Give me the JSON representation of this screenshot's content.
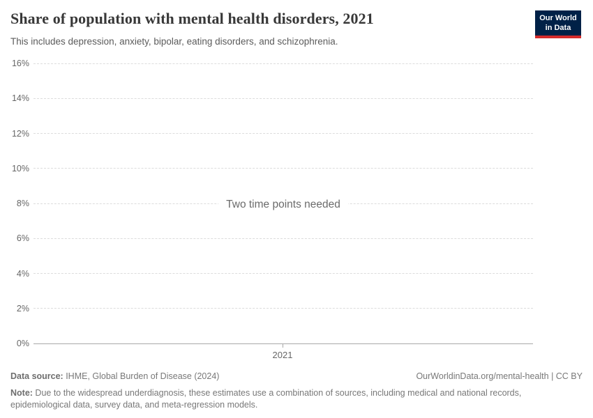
{
  "header": {
    "title": "Share of population with mental health disorders, 2021",
    "subtitle": "This includes depression, anxiety, bipolar, eating disorders, and schizophrenia.",
    "logo": {
      "line1": "Our World",
      "line2": "in Data",
      "bg_color": "#002147",
      "bar_color": "#d42b2b"
    }
  },
  "chart_data": {
    "type": "line",
    "title": "Share of population with mental health disorders, 2021",
    "empty_message": "Two time points needed",
    "series": [],
    "x_ticks": [
      "2021"
    ],
    "y_ticks": [
      "16%",
      "14%",
      "12%",
      "10%",
      "8%",
      "6%",
      "4%",
      "2%",
      "0%"
    ],
    "ylabel": "",
    "xlabel": "",
    "ylim": [
      0,
      16
    ],
    "y_tick_step": 2,
    "grid": "horizontal-dashed",
    "legend": "none"
  },
  "footer": {
    "data_source_label": "Data source:",
    "data_source_value": " IHME, Global Burden of Disease (2024)",
    "attribution": "OurWorldinData.org/mental-health | CC BY",
    "note_label": "Note:",
    "note_value": " Due to the widespread underdiagnosis, these estimates use a combination of sources, including medical and national records, epidemiological data, survey data, and meta-regression models."
  }
}
